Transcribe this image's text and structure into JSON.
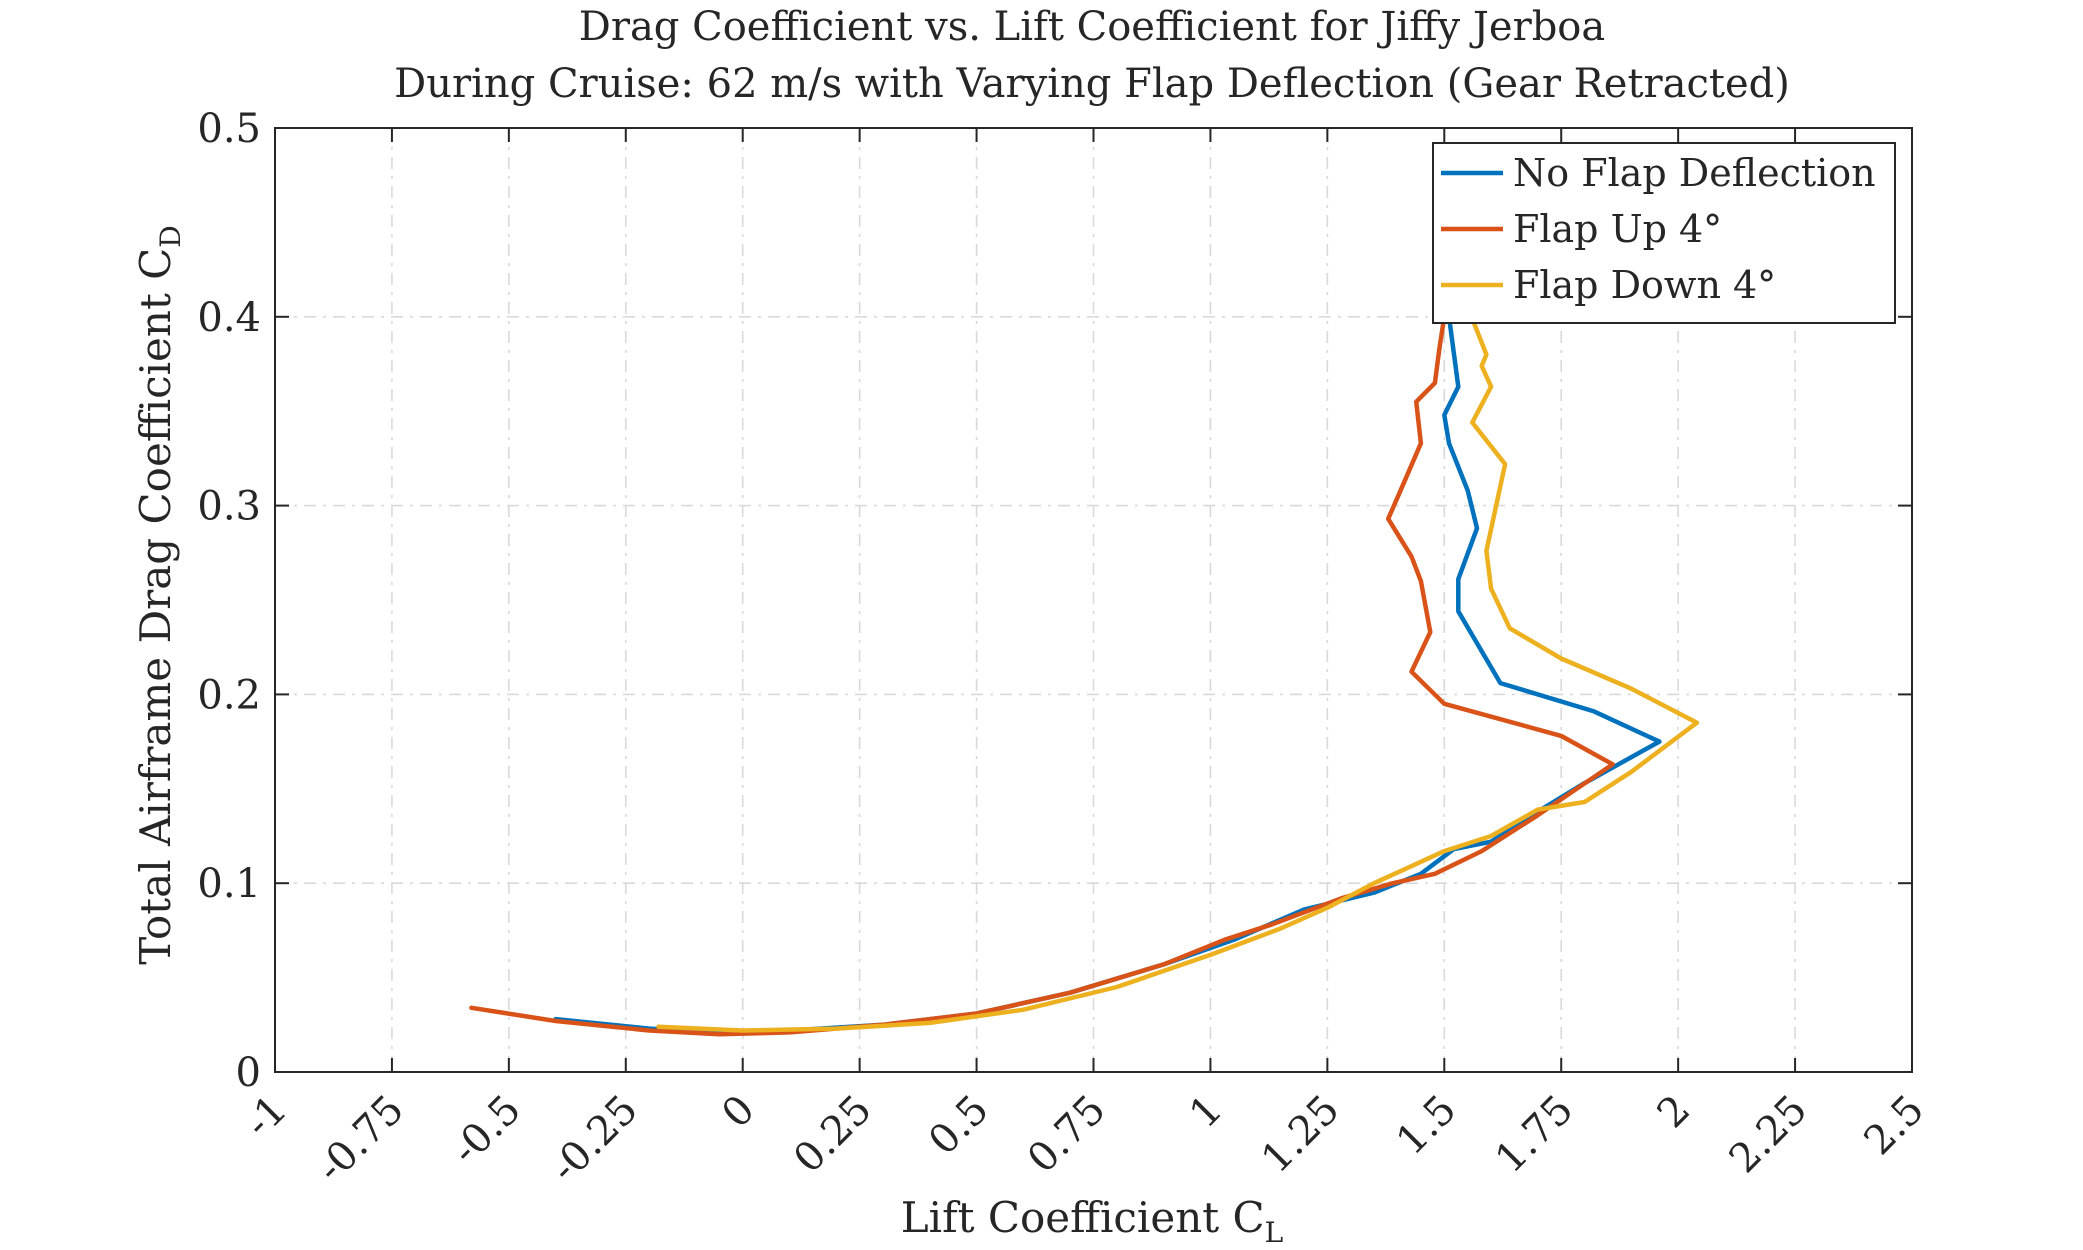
{
  "chart_data": {
    "type": "line",
    "title": "Drag Coefficient vs. Lift Coefficient for Jiffy Jerboa",
    "subtitle": "During Cruise: 62 m/s with Varying Flap Deflection (Gear Retracted)",
    "xlabel": "Lift Coefficient C",
    "xlabel_sub": "L",
    "ylabel": "Total Airframe Drag Coefficient C",
    "ylabel_sub": "D",
    "xlim": [
      -1,
      2.5
    ],
    "ylim": [
      0,
      0.5
    ],
    "x_ticks": [
      -1,
      -0.75,
      -0.5,
      -0.25,
      0,
      0.25,
      0.5,
      0.75,
      1,
      1.25,
      1.5,
      1.75,
      2,
      2.25,
      2.5
    ],
    "x_tick_labels": [
      "-1",
      "-0.75",
      "-0.5",
      "-0.25",
      "0",
      "0.25",
      "0.5",
      "0.75",
      "1",
      "1.25",
      "1.5",
      "1.75",
      "2",
      "2.25",
      "2.5"
    ],
    "y_ticks": [
      0,
      0.1,
      0.2,
      0.3,
      0.4,
      0.5
    ],
    "y_tick_labels": [
      "0",
      "0.1",
      "0.2",
      "0.3",
      "0.4",
      "0.5"
    ],
    "grid": true,
    "legend_position": "top-right",
    "series": [
      {
        "name": "No Flap Deflection",
        "color": "#0072BD",
        "x": [
          -0.4,
          -0.2,
          -0.05,
          0.1,
          0.3,
          0.5,
          0.7,
          0.9,
          1.05,
          1.2,
          1.35,
          1.45,
          1.52,
          1.6,
          1.7,
          1.8,
          1.96,
          1.82,
          1.62,
          1.53,
          1.53,
          1.57,
          1.55,
          1.51,
          1.5,
          1.53,
          1.51,
          1.5
        ],
        "y": [
          0.028,
          0.023,
          0.021,
          0.022,
          0.025,
          0.031,
          0.042,
          0.057,
          0.07,
          0.086,
          0.095,
          0.105,
          0.118,
          0.122,
          0.138,
          0.153,
          0.175,
          0.191,
          0.206,
          0.244,
          0.261,
          0.288,
          0.308,
          0.333,
          0.348,
          0.363,
          0.4,
          0.402
        ]
      },
      {
        "name": "Flap Up 4°",
        "color": "#D95319",
        "x": [
          -0.58,
          -0.4,
          -0.2,
          -0.05,
          0.1,
          0.3,
          0.5,
          0.7,
          0.9,
          1.03,
          1.13,
          1.28,
          1.39,
          1.48,
          1.58,
          1.7,
          1.86,
          1.75,
          1.5,
          1.43,
          1.47,
          1.45,
          1.43,
          1.38,
          1.41,
          1.45,
          1.44,
          1.48,
          1.49,
          1.5
        ],
        "y": [
          0.034,
          0.027,
          0.022,
          0.02,
          0.021,
          0.025,
          0.031,
          0.042,
          0.057,
          0.07,
          0.078,
          0.092,
          0.1,
          0.105,
          0.117,
          0.136,
          0.163,
          0.178,
          0.195,
          0.212,
          0.233,
          0.26,
          0.273,
          0.293,
          0.31,
          0.333,
          0.355,
          0.365,
          0.384,
          0.4
        ]
      },
      {
        "name": "Flap Down 4°",
        "color": "#EDB120",
        "x": [
          -0.18,
          0.0,
          0.2,
          0.4,
          0.6,
          0.8,
          1.0,
          1.15,
          1.25,
          1.35,
          1.5,
          1.6,
          1.7,
          1.8,
          1.9,
          2.04,
          1.9,
          1.75,
          1.64,
          1.6,
          1.59,
          1.63,
          1.56,
          1.6,
          1.58,
          1.59,
          1.56
        ],
        "y": [
          0.024,
          0.022,
          0.023,
          0.026,
          0.033,
          0.045,
          0.062,
          0.076,
          0.087,
          0.1,
          0.117,
          0.125,
          0.139,
          0.143,
          0.159,
          0.185,
          0.203,
          0.219,
          0.235,
          0.256,
          0.276,
          0.322,
          0.344,
          0.363,
          0.374,
          0.38,
          0.399
        ]
      }
    ]
  }
}
